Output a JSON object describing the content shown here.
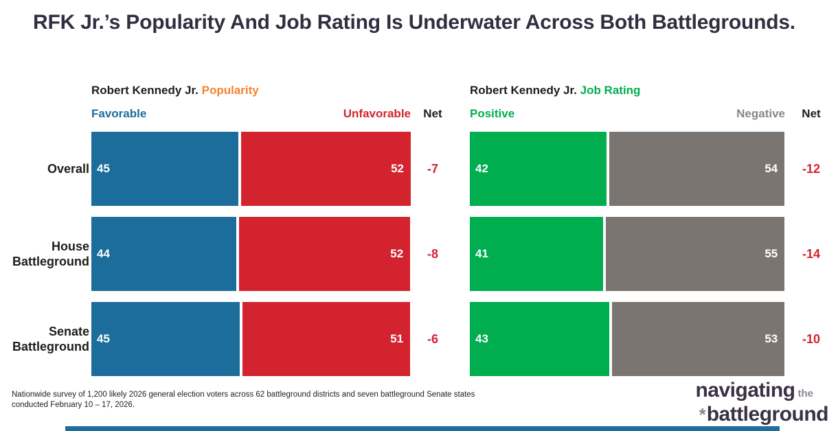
{
  "title": "RFK Jr.’s Popularity And Job Rating Is Underwater Across Both Battlegrounds.",
  "colors": {
    "title_text": "#322d3f",
    "favorable_blue": "#1c6d9c",
    "unfavorable_red": "#d2232f",
    "positive_green": "#00ad4f",
    "negative_gray": "#7b7571",
    "net_red": "#d2232f",
    "highlight_orange": "#f5832f",
    "highlight_green": "#00ad4f",
    "logo_dark": "#3a3144",
    "logo_light": "#8d8496"
  },
  "chart_data": [
    {
      "type": "bar",
      "title_prefix": "Robert Kennedy Jr.",
      "title_highlight": "Popularity",
      "left_label": "Favorable",
      "right_label": "Unfavorable",
      "net_label": "Net",
      "axis_total": 97,
      "legend_position": "top",
      "categories": [
        "Overall",
        "House Battleground",
        "Senate Battleground"
      ],
      "series": [
        {
          "name": "Favorable",
          "color": "#1c6d9c",
          "values": [
            45,
            44,
            45
          ]
        },
        {
          "name": "Unfavorable",
          "color": "#d2232f",
          "values": [
            52,
            52,
            51
          ]
        }
      ],
      "net_values": [
        "-7",
        "-8",
        "-6"
      ]
    },
    {
      "type": "bar",
      "title_prefix": "Robert Kennedy Jr.",
      "title_highlight": "Job Rating",
      "left_label": "Positive",
      "right_label": "Negative",
      "net_label": "Net",
      "axis_total": 97,
      "legend_position": "top",
      "categories": [
        "Overall",
        "House Battleground",
        "Senate Battleground"
      ],
      "series": [
        {
          "name": "Positive",
          "color": "#00ad4f",
          "values": [
            42,
            41,
            43
          ]
        },
        {
          "name": "Negative",
          "color": "#7b7571",
          "values": [
            54,
            55,
            53
          ]
        }
      ],
      "net_values": [
        "-12",
        "-14",
        "-10"
      ]
    }
  ],
  "footer": {
    "source_note": "Nationwide survey of 1,200 likely 2026 general election voters across 62 battleground districts and seven battleground Senate states conducted February 10 – 17, 2026."
  },
  "logo": {
    "word1": "navigating",
    "word_small": "the",
    "asterisk": "*",
    "word2": "battleground"
  }
}
